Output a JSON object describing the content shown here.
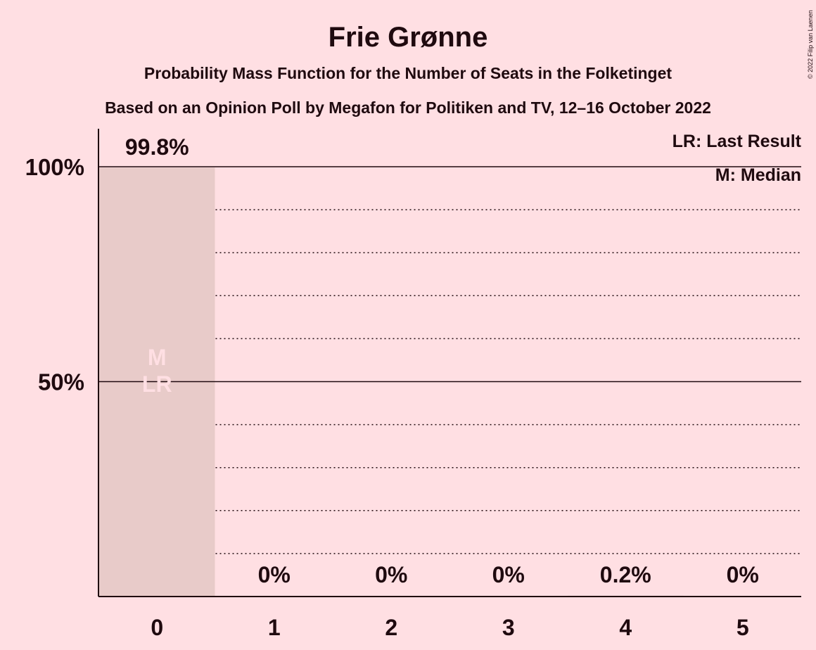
{
  "chart_data": {
    "type": "bar",
    "title": "Frie Grønne",
    "subtitle": "Probability Mass Function for the Number of Seats in the Folketinget",
    "subtitle2": "Based on an Opinion Poll by Megafon for Politiken and TV, 12–16 October 2022",
    "categories": [
      "0",
      "1",
      "2",
      "3",
      "4",
      "5"
    ],
    "values": [
      99.8,
      0,
      0,
      0,
      0.2,
      0
    ],
    "data_labels": [
      "99.8%",
      "0%",
      "0%",
      "0%",
      "0.2%",
      "0%"
    ],
    "y_ticks": [
      {
        "value": 50,
        "label": "50%"
      },
      {
        "value": 100,
        "label": "100%"
      }
    ],
    "ylim": [
      0,
      100
    ],
    "grid_step": 10,
    "bar_markers": {
      "category": "0",
      "labels": [
        "M",
        "LR"
      ]
    },
    "legend": [
      "LR: Last Result",
      "M: Median"
    ],
    "legend_position": "top-right",
    "copyright": "© 2022 Filip van Laenen",
    "colors": {
      "background": "#ffdfe3",
      "bar": "#e8cbc9",
      "text": "#1f0a0f",
      "marker_text": "#ffdfe3"
    }
  }
}
